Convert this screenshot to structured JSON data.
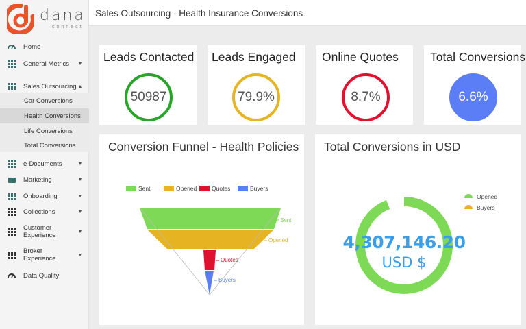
{
  "brand": {
    "name": "dana",
    "sub": "connect",
    "accent": "#e8532a"
  },
  "header": {
    "title": "Sales Outsourcing - Health Insurance Conversions"
  },
  "sidebar": {
    "items": [
      {
        "label": "Home",
        "icon": "speedometer-icon"
      },
      {
        "label": "General Metrics",
        "icon": "grid-icon"
      },
      {
        "label": "Sales Outsourcing",
        "icon": "grid-icon"
      },
      {
        "label": "e-Documents",
        "icon": "grid-icon"
      },
      {
        "label": "Marketing",
        "icon": "monitor-icon"
      },
      {
        "label": "Onboarding",
        "icon": "grid-icon"
      },
      {
        "label": "Collections",
        "icon": "grid-icon"
      },
      {
        "label": "Customer Experience",
        "icon": "grid-icon"
      },
      {
        "label": "Broker Experience",
        "icon": "grid-icon"
      },
      {
        "label": "Data Quality",
        "icon": "speedometer-icon"
      }
    ],
    "sales_sub": [
      "Car Conversions",
      "Health Conversions",
      "Life Conversions",
      "Total Conversions"
    ],
    "active_sub": "Health Conversions"
  },
  "kpis": [
    {
      "title": "Leads Contacted",
      "value": "50987",
      "color": "#28a428"
    },
    {
      "title": "Leads Engaged",
      "value": "79.9%",
      "color": "#e6b422"
    },
    {
      "title": "Online Quotes",
      "value": "8.7%",
      "color": "#e0102e"
    },
    {
      "title": "Total Conversions",
      "value": "6.6%",
      "color": "#5b7df5"
    }
  ],
  "funnel": {
    "title": "Conversion Funnel - Health Policies",
    "chart_data": {
      "type": "funnel",
      "categories": [
        "Sent",
        "Opened",
        "Quotes",
        "Buyers"
      ],
      "colors": [
        "#7ed957",
        "#e6b422",
        "#e0102e",
        "#5b7df5"
      ],
      "legend": "top"
    }
  },
  "usd": {
    "title": "Total Conversions in USD",
    "amount": "4,307,146.20",
    "unit": "USD $",
    "chart_data": {
      "type": "pie",
      "categories": [
        "Opened",
        "Buyers"
      ],
      "values": [
        94,
        6
      ],
      "colors": [
        "#7ed957",
        "#e6b422"
      ],
      "legend": "top-right"
    }
  }
}
